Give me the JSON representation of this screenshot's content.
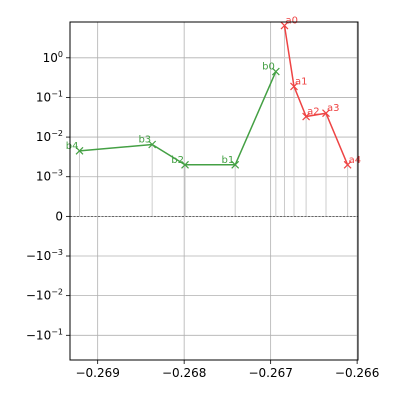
{
  "chart_data": {
    "type": "line",
    "title": "",
    "xlabel": "",
    "ylabel": "",
    "xscale": "linear",
    "yscale": "symlog",
    "symlog_linthresh": 0.001,
    "xlim": [
      -0.26932,
      -0.26599
    ],
    "ylim": [
      -0.42,
      8.0
    ],
    "grid": true,
    "legend": "none",
    "x_ticks": [
      {
        "value": -0.269,
        "label": "−0.269"
      },
      {
        "value": -0.268,
        "label": "−0.268"
      },
      {
        "value": -0.267,
        "label": "−0.267"
      },
      {
        "value": -0.266,
        "label": "−0.266"
      }
    ],
    "y_ticks": [
      {
        "value": 1,
        "label": "10^0"
      },
      {
        "value": 0.1,
        "label": "10^-1"
      },
      {
        "value": 0.01,
        "label": "10^-2"
      },
      {
        "value": 0.001,
        "label": "10^-3"
      },
      {
        "value": 0,
        "label": "0"
      },
      {
        "value": -0.001,
        "label": "−10^-3"
      },
      {
        "value": -0.01,
        "label": "−10^-2"
      },
      {
        "value": -0.1,
        "label": "−10^-1"
      }
    ],
    "zero_line": {
      "y": 0,
      "style": "dashed"
    },
    "series": [
      {
        "color": "#ee4444",
        "marker": "x",
        "points": [
          {
            "label": "a0",
            "x": -0.26684,
            "y": 6.5
          },
          {
            "label": "a1",
            "x": -0.26673,
            "y": 0.19
          },
          {
            "label": "a2",
            "x": -0.26659,
            "y": 0.033
          },
          {
            "label": "a3",
            "x": -0.26636,
            "y": 0.04
          },
          {
            "label": "a4",
            "x": -0.26611,
            "y": 0.002
          }
        ]
      },
      {
        "color": "#44a044",
        "marker": "x",
        "points": [
          {
            "label": "b0",
            "x": -0.26694,
            "y": 0.45
          },
          {
            "label": "b1",
            "x": -0.26741,
            "y": 0.002
          },
          {
            "label": "b2",
            "x": -0.26799,
            "y": 0.002
          },
          {
            "label": "b3",
            "x": -0.26837,
            "y": 0.0065
          },
          {
            "label": "b4",
            "x": -0.26921,
            "y": 0.0045
          }
        ]
      }
    ]
  }
}
